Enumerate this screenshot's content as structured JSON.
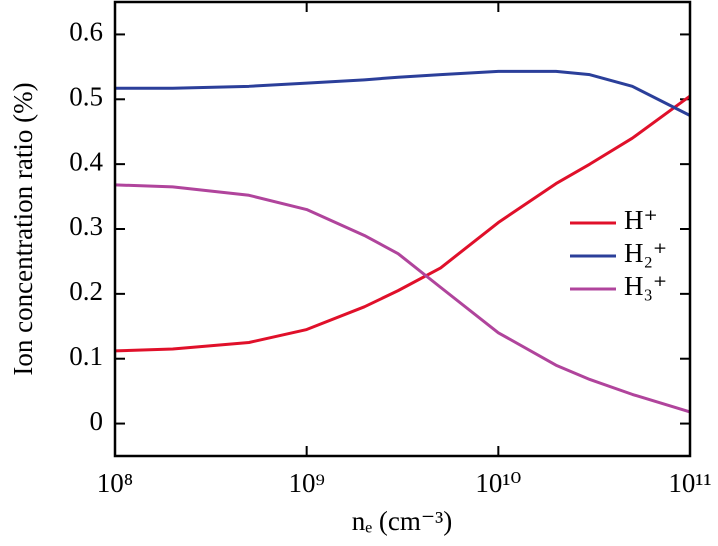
{
  "chart_data": {
    "type": "line",
    "xlabel": "nₑ (cm⁻³)",
    "ylabel": "Ion concentration ratio (%)",
    "x": [
      100000000,
      200000000,
      500000000,
      1000000000,
      2000000000,
      3000000000,
      5000000000,
      10000000000,
      20000000000,
      30000000000,
      50000000000,
      100000000000
    ],
    "series": [
      {
        "name": "H⁺",
        "color": "#e0102a",
        "values": [
          0.112,
          0.115,
          0.125,
          0.145,
          0.18,
          0.205,
          0.24,
          0.31,
          0.37,
          0.4,
          0.44,
          0.505
        ]
      },
      {
        "name": "H₂⁺",
        "color": "#2b3f9a",
        "values": [
          0.517,
          0.517,
          0.52,
          0.525,
          0.53,
          0.534,
          0.538,
          0.543,
          0.543,
          0.538,
          0.52,
          0.475
        ]
      },
      {
        "name": "H₃⁺",
        "color": "#b0449c",
        "values": [
          0.368,
          0.365,
          0.352,
          0.33,
          0.29,
          0.262,
          0.21,
          0.14,
          0.09,
          0.068,
          0.045,
          0.018
        ]
      }
    ],
    "xscale": "log",
    "xlim": [
      100000000,
      100000000000
    ],
    "xticks": [
      {
        "value": 100000000,
        "label": "10⁸"
      },
      {
        "value": 1000000000,
        "label": "10⁹"
      },
      {
        "value": 10000000000,
        "label": "10¹⁰"
      },
      {
        "value": 100000000000,
        "label": "10¹¹"
      }
    ],
    "ylim": [
      -0.05,
      0.65
    ],
    "yticks": [
      0,
      0.1,
      0.2,
      0.3,
      0.4,
      0.5,
      0.6
    ],
    "legend": "right"
  }
}
